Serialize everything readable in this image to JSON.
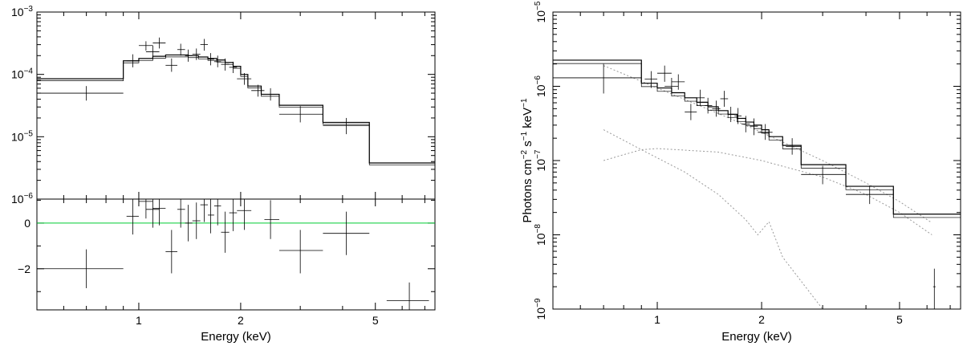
{
  "chart_data": [
    {
      "type": "scatter",
      "panel": "left-top",
      "x_scale": "log",
      "y_scale": "log",
      "xlim": [
        0.5,
        7.5
      ],
      "ylim": [
        1e-06,
        0.001
      ],
      "ytick_labels": [
        {
          "value": 0.001,
          "base": "10",
          "exp": "−3"
        },
        {
          "value": 0.0001,
          "base": "10",
          "exp": "−4"
        },
        {
          "value": 1e-05,
          "base": "10",
          "exp": "−5"
        },
        {
          "value": 1e-06,
          "base": "10",
          "exp": "−6"
        }
      ],
      "model_steps": [
        {
          "x0": 0.5,
          "x1": 0.9,
          "y": 8.5e-05
        },
        {
          "x0": 0.9,
          "x1": 1.0,
          "y": 0.000165
        },
        {
          "x0": 1.0,
          "x1": 1.1,
          "y": 0.00018
        },
        {
          "x0": 1.1,
          "x1": 1.2,
          "y": 0.000195
        },
        {
          "x0": 1.2,
          "x1": 1.3,
          "y": 0.000205
        },
        {
          "x0": 1.3,
          "x1": 1.4,
          "y": 0.000205
        },
        {
          "x0": 1.4,
          "x1": 1.5,
          "y": 0.0002
        },
        {
          "x0": 1.5,
          "x1": 1.6,
          "y": 0.00019
        },
        {
          "x0": 1.6,
          "x1": 1.7,
          "y": 0.00018
        },
        {
          "x0": 1.7,
          "x1": 1.8,
          "y": 0.00017
        },
        {
          "x0": 1.8,
          "x1": 1.9,
          "y": 0.000155
        },
        {
          "x0": 1.9,
          "x1": 2.0,
          "y": 0.000135
        },
        {
          "x0": 2.0,
          "x1": 2.1,
          "y": 0.0001
        },
        {
          "x0": 2.1,
          "x1": 2.3,
          "y": 6.5e-05
        },
        {
          "x0": 2.3,
          "x1": 2.6,
          "y": 4.8e-05
        },
        {
          "x0": 2.6,
          "x1": 3.5,
          "y": 3.2e-05
        },
        {
          "x0": 3.5,
          "x1": 4.8,
          "y": 1.7e-05
        },
        {
          "x0": 4.8,
          "x1": 7.5,
          "y": 3.8e-06
        }
      ],
      "points": [
        {
          "x": 0.7,
          "xlo": 0.5,
          "xhi": 0.9,
          "y": 5e-05,
          "ylo": 3.8e-05,
          "yhi": 6.5e-05
        },
        {
          "x": 0.96,
          "xlo": 0.92,
          "xhi": 1.0,
          "y": 0.000165,
          "ylo": 0.00013,
          "yhi": 0.00021
        },
        {
          "x": 1.05,
          "xlo": 1.0,
          "xhi": 1.1,
          "y": 0.00029,
          "ylo": 0.00024,
          "yhi": 0.00034
        },
        {
          "x": 1.1,
          "xlo": 1.05,
          "xhi": 1.15,
          "y": 0.00023,
          "ylo": 0.00018,
          "yhi": 0.00029
        },
        {
          "x": 1.15,
          "xlo": 1.1,
          "xhi": 1.2,
          "y": 0.00032,
          "ylo": 0.00026,
          "yhi": 0.00039
        },
        {
          "x": 1.25,
          "xlo": 1.2,
          "xhi": 1.3,
          "y": 0.00014,
          "ylo": 0.00011,
          "yhi": 0.00018
        },
        {
          "x": 1.33,
          "xlo": 1.3,
          "xhi": 1.37,
          "y": 0.00025,
          "ylo": 0.0002,
          "yhi": 0.00031
        },
        {
          "x": 1.4,
          "xlo": 1.37,
          "xhi": 1.44,
          "y": 0.0002,
          "ylo": 0.00016,
          "yhi": 0.00025
        },
        {
          "x": 1.48,
          "xlo": 1.44,
          "xhi": 1.52,
          "y": 0.00021,
          "ylo": 0.00017,
          "yhi": 0.00026
        },
        {
          "x": 1.56,
          "xlo": 1.52,
          "xhi": 1.6,
          "y": 0.0003,
          "ylo": 0.00024,
          "yhi": 0.00037
        },
        {
          "x": 1.63,
          "xlo": 1.6,
          "xhi": 1.67,
          "y": 0.000175,
          "ylo": 0.00014,
          "yhi": 0.00022
        },
        {
          "x": 1.71,
          "xlo": 1.67,
          "xhi": 1.75,
          "y": 0.00016,
          "ylo": 0.00013,
          "yhi": 0.0002
        },
        {
          "x": 1.8,
          "xlo": 1.75,
          "xhi": 1.85,
          "y": 0.000145,
          "ylo": 0.000115,
          "yhi": 0.00018
        },
        {
          "x": 1.9,
          "xlo": 1.85,
          "xhi": 1.95,
          "y": 0.00013,
          "ylo": 0.000105,
          "yhi": 0.00016
        },
        {
          "x": 2.05,
          "xlo": 1.95,
          "xhi": 2.15,
          "y": 8.5e-05,
          "ylo": 6.8e-05,
          "yhi": 0.000105
        },
        {
          "x": 2.25,
          "xlo": 2.15,
          "xhi": 2.35,
          "y": 5.5e-05,
          "ylo": 4.4e-05,
          "yhi": 6.8e-05
        },
        {
          "x": 2.45,
          "xlo": 2.35,
          "xhi": 2.6,
          "y": 4.8e-05,
          "ylo": 3.8e-05,
          "yhi": 6e-05
        },
        {
          "x": 3.0,
          "xlo": 2.6,
          "xhi": 3.5,
          "y": 2.3e-05,
          "ylo": 1.7e-05,
          "yhi": 3.1e-05
        },
        {
          "x": 4.1,
          "xlo": 3.5,
          "xhi": 4.8,
          "y": 1.5e-05,
          "ylo": 1.1e-05,
          "yhi": 2e-05
        }
      ]
    },
    {
      "type": "scatter",
      "panel": "left-bottom",
      "x_scale": "log",
      "y_scale": "linear",
      "xlim": [
        0.5,
        7.5
      ],
      "ylim": [
        -3.8,
        1.05
      ],
      "xlabel": "Energy (keV)",
      "xtick_labels": [
        {
          "value": 1,
          "label": "1"
        },
        {
          "value": 2,
          "label": "2"
        },
        {
          "value": 5,
          "label": "5"
        }
      ],
      "ytick_labels": [
        {
          "value": 0,
          "label": "0"
        },
        {
          "value": -2,
          "label": "−2"
        }
      ],
      "zero_line": 0,
      "zero_line_color": "#00cc33",
      "points": [
        {
          "x": 0.7,
          "xlo": 0.5,
          "xhi": 0.9,
          "y": -2.0,
          "ylo": -2.85,
          "yhi": -1.15
        },
        {
          "x": 0.96,
          "xlo": 0.92,
          "xhi": 1.0,
          "y": 0.3,
          "ylo": -0.5,
          "yhi": 1.05
        },
        {
          "x": 1.05,
          "xlo": 1.0,
          "xhi": 1.1,
          "y": 0.95,
          "ylo": 0.2,
          "yhi": 1.05
        },
        {
          "x": 1.1,
          "xlo": 1.05,
          "xhi": 1.15,
          "y": 0.6,
          "ylo": -0.2,
          "yhi": 1.05
        },
        {
          "x": 1.15,
          "xlo": 1.1,
          "xhi": 1.2,
          "y": 0.65,
          "ylo": -0.1,
          "yhi": 1.05
        },
        {
          "x": 1.25,
          "xlo": 1.2,
          "xhi": 1.3,
          "y": -1.25,
          "ylo": -2.2,
          "yhi": -0.3
        },
        {
          "x": 1.33,
          "xlo": 1.3,
          "xhi": 1.37,
          "y": 0.6,
          "ylo": -0.2,
          "yhi": 1.05
        },
        {
          "x": 1.4,
          "xlo": 1.37,
          "xhi": 1.44,
          "y": 0.0,
          "ylo": -0.8,
          "yhi": 0.8
        },
        {
          "x": 1.48,
          "xlo": 1.44,
          "xhi": 1.52,
          "y": 0.1,
          "ylo": -0.7,
          "yhi": 0.9
        },
        {
          "x": 1.56,
          "xlo": 1.52,
          "xhi": 1.6,
          "y": 0.8,
          "ylo": 0.05,
          "yhi": 1.05
        },
        {
          "x": 1.63,
          "xlo": 1.6,
          "xhi": 1.67,
          "y": 0.35,
          "ylo": -0.45,
          "yhi": 1.05
        },
        {
          "x": 1.71,
          "xlo": 1.67,
          "xhi": 1.75,
          "y": 0.75,
          "ylo": -0.1,
          "yhi": 1.05
        },
        {
          "x": 1.8,
          "xlo": 1.75,
          "xhi": 1.85,
          "y": -0.4,
          "ylo": -1.3,
          "yhi": 0.5
        },
        {
          "x": 1.9,
          "xlo": 1.85,
          "xhi": 1.95,
          "y": 0.45,
          "ylo": -0.35,
          "yhi": 1.05
        },
        {
          "x": 2.05,
          "xlo": 1.95,
          "xhi": 2.15,
          "y": 0.55,
          "ylo": -0.3,
          "yhi": 1.05
        },
        {
          "x": 2.45,
          "xlo": 2.35,
          "xhi": 2.6,
          "y": 0.15,
          "ylo": -0.7,
          "yhi": 1.0
        },
        {
          "x": 3.0,
          "xlo": 2.6,
          "xhi": 3.5,
          "y": -1.2,
          "ylo": -2.2,
          "yhi": -0.3
        },
        {
          "x": 4.1,
          "xlo": 3.5,
          "xhi": 4.8,
          "y": -0.45,
          "ylo": -1.4,
          "yhi": 0.5
        },
        {
          "x": 6.3,
          "xlo": 5.4,
          "xhi": 7.2,
          "y": -3.4,
          "ylo": -3.8,
          "yhi": -2.6
        }
      ]
    },
    {
      "type": "scatter",
      "panel": "right",
      "x_scale": "log",
      "y_scale": "log",
      "xlim": [
        0.5,
        7.5
      ],
      "ylim": [
        1e-09,
        1e-05
      ],
      "xlabel": "Energy (keV)",
      "ylabel_parts": [
        "Photons cm",
        "−2",
        " s",
        "−1",
        " keV",
        "−1"
      ],
      "xtick_labels": [
        {
          "value": 1,
          "label": "1"
        },
        {
          "value": 2,
          "label": "2"
        },
        {
          "value": 5,
          "label": "5"
        }
      ],
      "ytick_labels": [
        {
          "value": 1e-05,
          "base": "10",
          "exp": "−5"
        },
        {
          "value": 1e-06,
          "base": "10",
          "exp": "−6"
        },
        {
          "value": 1e-07,
          "base": "10",
          "exp": "−7"
        },
        {
          "value": 1e-08,
          "base": "10",
          "exp": "−8"
        },
        {
          "value": 1e-09,
          "base": "10",
          "exp": "−9"
        }
      ],
      "model_steps": [
        {
          "x0": 0.5,
          "x1": 0.9,
          "y": 2.25e-06
        },
        {
          "x0": 0.9,
          "x1": 1.0,
          "y": 1.1e-06
        },
        {
          "x0": 1.0,
          "x1": 1.1,
          "y": 9.5e-07
        },
        {
          "x0": 1.1,
          "x1": 1.2,
          "y": 8.2e-07
        },
        {
          "x0": 1.2,
          "x1": 1.3,
          "y": 7e-07
        },
        {
          "x0": 1.3,
          "x1": 1.4,
          "y": 6.1e-07
        },
        {
          "x0": 1.4,
          "x1": 1.5,
          "y": 5.3e-07
        },
        {
          "x0": 1.5,
          "x1": 1.6,
          "y": 4.7e-07
        },
        {
          "x0": 1.6,
          "x1": 1.7,
          "y": 4.2e-07
        },
        {
          "x0": 1.7,
          "x1": 1.8,
          "y": 3.7e-07
        },
        {
          "x0": 1.8,
          "x1": 1.9,
          "y": 3.3e-07
        },
        {
          "x0": 1.9,
          "x1": 2.0,
          "y": 3e-07
        },
        {
          "x0": 2.0,
          "x1": 2.1,
          "y": 2.6e-07
        },
        {
          "x0": 2.1,
          "x1": 2.3,
          "y": 2.1e-07
        },
        {
          "x0": 2.3,
          "x1": 2.6,
          "y": 1.6e-07
        },
        {
          "x0": 2.6,
          "x1": 3.5,
          "y": 8.8e-08
        },
        {
          "x0": 3.5,
          "x1": 4.8,
          "y": 4.5e-08
        },
        {
          "x0": 4.8,
          "x1": 7.5,
          "y": 1.9e-08
        }
      ],
      "components": [
        {
          "x": [
            0.7,
            1.0,
            1.5,
            2.0,
            3.0,
            4.0,
            5.0,
            6.2
          ],
          "y": [
            1.9e-06,
            9.5e-07,
            4.3e-07,
            2.4e-07,
            1e-07,
            5e-08,
            2.8e-08,
            1.45e-08
          ]
        },
        {
          "x": [
            0.7,
            0.8,
            0.9,
            1.0,
            1.5,
            2.0,
            3.0,
            4.0,
            5.0,
            6.2
          ],
          "y": [
            1e-07,
            1.2e-07,
            1.4e-07,
            1.45e-07,
            1.3e-07,
            1e-07,
            6e-08,
            3.5e-08,
            2e-08,
            1e-08
          ]
        },
        {
          "x": [
            0.7,
            0.9,
            1.2,
            1.5,
            1.8,
            1.95,
            2.1,
            2.3,
            3.0
          ],
          "y": [
            2.6e-07,
            1.4e-07,
            7e-08,
            3.5e-08,
            1.6e-08,
            1e-08,
            1.5e-08,
            5e-09,
            1e-09
          ]
        }
      ],
      "points": [
        {
          "x": 0.7,
          "xlo": 0.5,
          "xhi": 0.9,
          "y": 1.3e-06,
          "ylo": 8e-07,
          "yhi": 2e-06
        },
        {
          "x": 0.96,
          "xlo": 0.92,
          "xhi": 1.0,
          "y": 1.25e-06,
          "ylo": 9.5e-07,
          "yhi": 1.6e-06
        },
        {
          "x": 1.05,
          "xlo": 1.0,
          "xhi": 1.1,
          "y": 1.5e-06,
          "ylo": 1.15e-06,
          "yhi": 1.9e-06
        },
        {
          "x": 1.1,
          "xlo": 1.05,
          "xhi": 1.15,
          "y": 1e-06,
          "ylo": 7.8e-07,
          "yhi": 1.3e-06
        },
        {
          "x": 1.15,
          "xlo": 1.1,
          "xhi": 1.2,
          "y": 1.15e-06,
          "ylo": 9e-07,
          "yhi": 1.45e-06
        },
        {
          "x": 1.25,
          "xlo": 1.2,
          "xhi": 1.3,
          "y": 4.5e-07,
          "ylo": 3.5e-07,
          "yhi": 5.8e-07
        },
        {
          "x": 1.33,
          "xlo": 1.3,
          "xhi": 1.37,
          "y": 7e-07,
          "ylo": 5.5e-07,
          "yhi": 9e-07
        },
        {
          "x": 1.4,
          "xlo": 1.37,
          "xhi": 1.44,
          "y": 5.5e-07,
          "ylo": 4.3e-07,
          "yhi": 7e-07
        },
        {
          "x": 1.48,
          "xlo": 1.44,
          "xhi": 1.52,
          "y": 5e-07,
          "ylo": 3.9e-07,
          "yhi": 6.4e-07
        },
        {
          "x": 1.56,
          "xlo": 1.52,
          "xhi": 1.6,
          "y": 6.8e-07,
          "ylo": 5.3e-07,
          "yhi": 8.7e-07
        },
        {
          "x": 1.63,
          "xlo": 1.6,
          "xhi": 1.67,
          "y": 4.2e-07,
          "ylo": 3.3e-07,
          "yhi": 5.3e-07
        },
        {
          "x": 1.71,
          "xlo": 1.67,
          "xhi": 1.75,
          "y": 4e-07,
          "ylo": 3.1e-07,
          "yhi": 5.1e-07
        },
        {
          "x": 1.8,
          "xlo": 1.75,
          "xhi": 1.85,
          "y": 3.1e-07,
          "ylo": 2.4e-07,
          "yhi": 4e-07
        },
        {
          "x": 1.9,
          "xlo": 1.85,
          "xhi": 1.95,
          "y": 2.9e-07,
          "ylo": 2.2e-07,
          "yhi": 3.7e-07
        },
        {
          "x": 2.05,
          "xlo": 1.95,
          "xhi": 2.15,
          "y": 2.4e-07,
          "ylo": 1.9e-07,
          "yhi": 3.1e-07
        },
        {
          "x": 2.45,
          "xlo": 2.35,
          "xhi": 2.6,
          "y": 1.55e-07,
          "ylo": 1.2e-07,
          "yhi": 2e-07
        },
        {
          "x": 3.0,
          "xlo": 2.6,
          "xhi": 3.5,
          "y": 6.5e-08,
          "ylo": 4.8e-08,
          "yhi": 8.5e-08
        },
        {
          "x": 4.1,
          "xlo": 3.5,
          "xhi": 4.8,
          "y": 3.5e-08,
          "ylo": 2.6e-08,
          "yhi": 4.6e-08
        },
        {
          "x": 6.3,
          "xlo": 6.25,
          "xhi": 6.35,
          "y": 2e-09,
          "ylo": 1e-09,
          "yhi": 3.5e-09
        }
      ]
    }
  ]
}
